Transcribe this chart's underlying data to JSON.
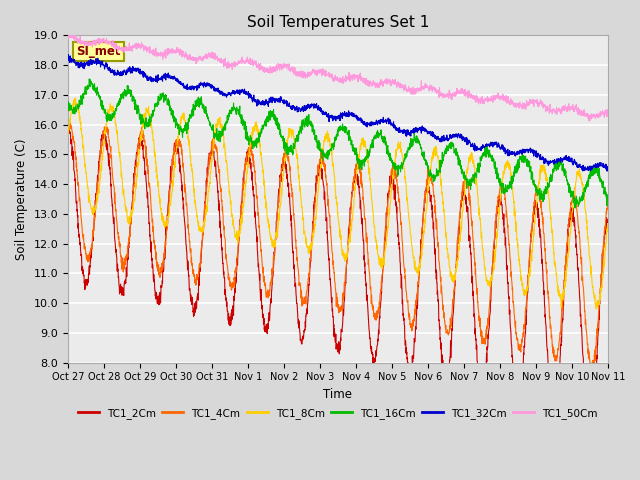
{
  "title": "Soil Temperatures Set 1",
  "xlabel": "Time",
  "ylabel": "Soil Temperature (C)",
  "ylim": [
    8.0,
    19.0
  ],
  "yticks": [
    8.0,
    9.0,
    10.0,
    11.0,
    12.0,
    13.0,
    14.0,
    15.0,
    16.0,
    17.0,
    18.0,
    19.0
  ],
  "xtick_labels": [
    "Oct 27",
    "Oct 28",
    "Oct 29",
    "Oct 30",
    "Oct 31",
    "Nov 1",
    "Nov 2",
    "Nov 3",
    "Nov 4",
    "Nov 5",
    "Nov 6",
    "Nov 7",
    "Nov 8",
    "Nov 9",
    "Nov 10",
    "Nov 11"
  ],
  "series_colors": {
    "TC1_2Cm": "#cc0000",
    "TC1_4Cm": "#ff6600",
    "TC1_8Cm": "#ffcc00",
    "TC1_16Cm": "#00bb00",
    "TC1_32Cm": "#0000cc",
    "TC1_50Cm": "#ff99dd"
  },
  "annotation_label": "SI_met",
  "annotation_color": "#880000",
  "annotation_bg": "#ffff99",
  "background_color": "#d8d8d8",
  "plot_bg": "#ebebeb",
  "grid_color": "#ffffff",
  "n_points": 2160,
  "duration_days": 15
}
